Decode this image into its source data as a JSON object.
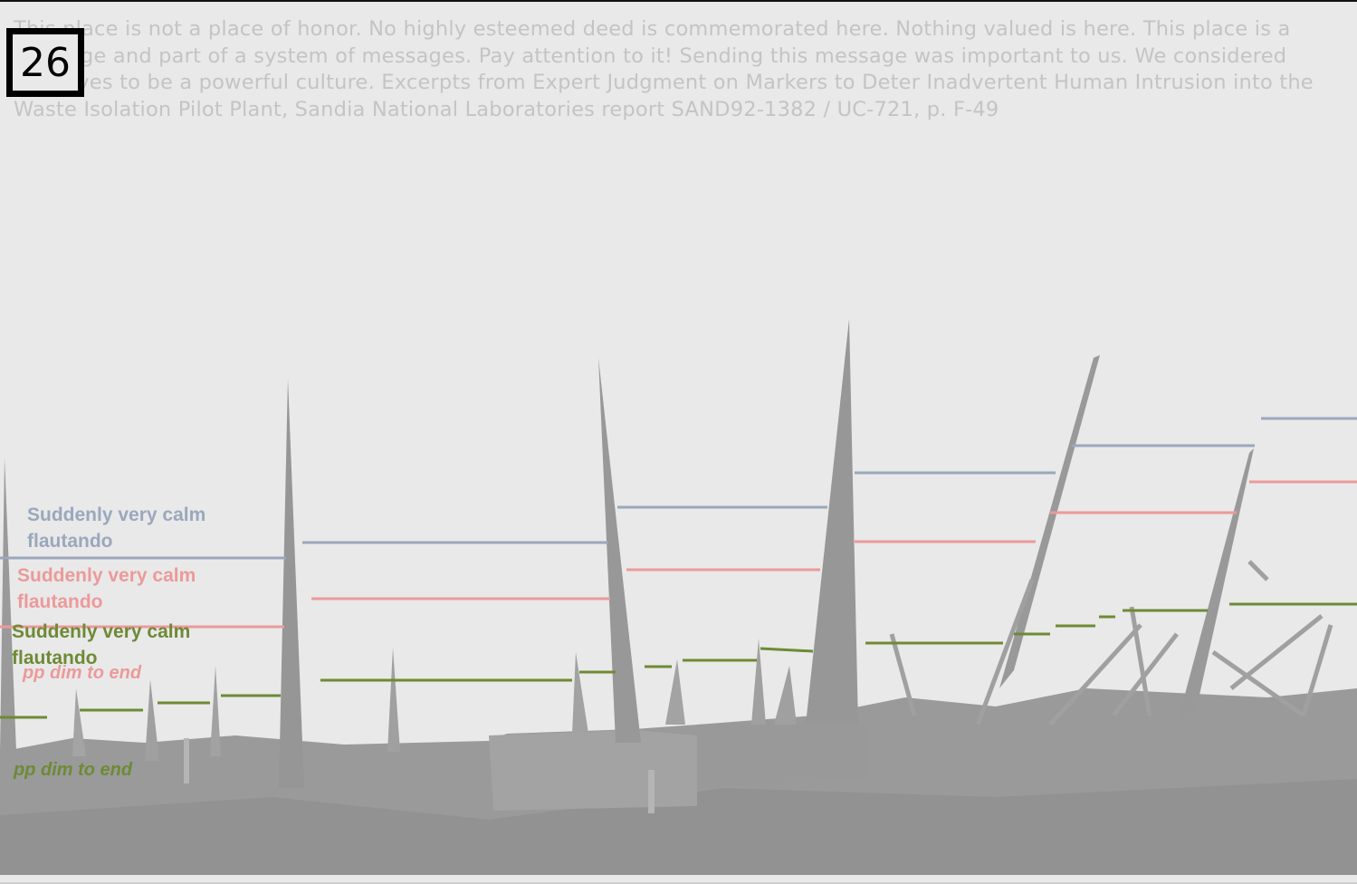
{
  "page_number": "26",
  "quote": "This place is not a place of honor. No highly esteemed deed is commemorated here. Nothing valued is here. This place is a message and part of a system of messages. Pay attention to it! Sending this message was important to us. We considered ourselves to be a powerful culture. Excerpts from Expert Judgment on Markers to Deter Inadvertent Human Intrusion into the Waste Isolation Pilot Plant, Sandia National Laboratories report SAND92-1382 / UC-721, p. F-49",
  "staves": {
    "blue": {
      "color": "#9aa8bd",
      "line1": "Suddenly very calm",
      "line2": "flautando"
    },
    "red": {
      "color": "#ec9a9a",
      "line1": "Suddenly very calm",
      "line2": "flautando",
      "dynamic": "pp dim to end"
    },
    "green": {
      "color": "#6e8a35",
      "line1": "Suddenly very calm",
      "line2": "flautando",
      "dynamic": "pp dim to end"
    }
  },
  "image_tone": "#9a9a9a"
}
